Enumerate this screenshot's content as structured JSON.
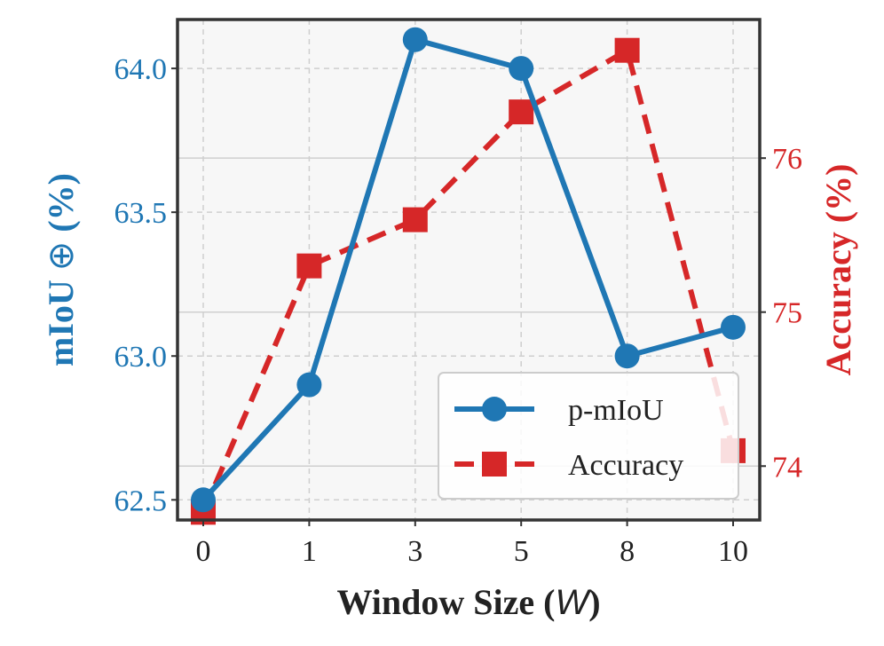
{
  "chart_data": {
    "type": "line",
    "categories": [
      "0",
      "1",
      "3",
      "5",
      "8",
      "10"
    ],
    "xlabel": "Window Size (",
    "xlabel_symbol": "W",
    "xlabel_close": ")",
    "ylabel_left": "mIoU",
    "ylabel_left_symbol": "⊕",
    "ylabel_left_unit": "(%)",
    "ylabel_right": "Accuracy (%)",
    "ylim_left": [
      62.43,
      64.17
    ],
    "ylim_right": [
      73.65,
      76.9
    ],
    "yticks_left": [
      "62.5",
      "63.0",
      "63.5",
      "64.0"
    ],
    "yticks_right": [
      "74",
      "75",
      "76"
    ],
    "grid": true,
    "legend_position": "lower-right",
    "series": [
      {
        "name": "p-mIoU",
        "axis": "left",
        "color": "#1f77b4",
        "line_style": "solid",
        "marker": "circle",
        "values": [
          62.5,
          62.9,
          64.1,
          64.0,
          63.0,
          63.1
        ]
      },
      {
        "name": "Accuracy",
        "axis": "right",
        "color": "#d62728",
        "line_style": "dashed",
        "marker": "square",
        "values": [
          73.7,
          75.3,
          75.6,
          76.3,
          76.7,
          74.1
        ]
      }
    ]
  }
}
